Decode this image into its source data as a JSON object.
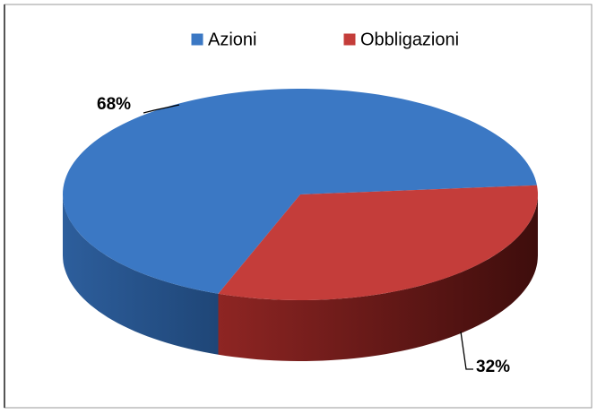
{
  "chart_data": {
    "type": "pie",
    "categories": [
      "Azioni",
      "Obbligazioni"
    ],
    "values": [
      68,
      32
    ],
    "value_labels": [
      "68%",
      "32%"
    ],
    "colors": [
      "#3b78c4",
      "#c43d3a"
    ],
    "legend": "top"
  }
}
